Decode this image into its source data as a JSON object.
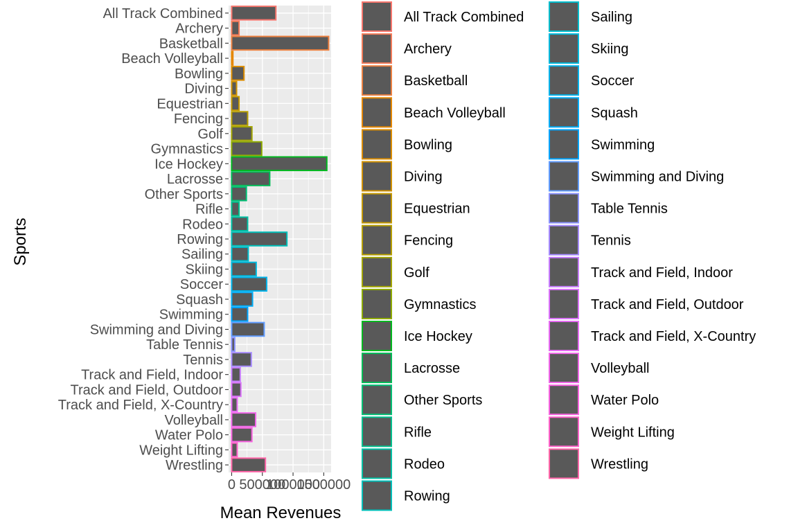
{
  "chart_data": {
    "type": "bar",
    "orientation": "horizontal",
    "xlabel": "Mean Revenues",
    "ylabel": "Sports",
    "x_ticks": [
      0,
      500000,
      1000000,
      1500000
    ],
    "x_tick_labels": [
      "0",
      "500000",
      "1000000",
      "1500000"
    ],
    "xlim": [
      -50000,
      1620000
    ],
    "grid": true,
    "legend_position": "right",
    "legend_columns": 2,
    "bar_fill": "#595959",
    "panel_background": "#ebebeb",
    "categories": [
      "All Track Combined",
      "Archery",
      "Basketball",
      "Beach Volleyball",
      "Bowling",
      "Diving",
      "Equestrian",
      "Fencing",
      "Golf",
      "Gymnastics",
      "Ice Hockey",
      "Lacrosse",
      "Other Sports",
      "Rifle",
      "Rodeo",
      "Rowing",
      "Sailing",
      "Skiing",
      "Soccer",
      "Squash",
      "Swimming",
      "Swimming and Diving",
      "Table Tennis",
      "Tennis",
      "Track and Field, Indoor",
      "Track and Field, Outdoor",
      "Track and Field, X-Country",
      "Volleyball",
      "Water Polo",
      "Weight Lifting",
      "Wrestling"
    ],
    "values": [
      720000,
      120000,
      1580000,
      20000,
      200000,
      80000,
      120000,
      260000,
      330000,
      490000,
      1550000,
      620000,
      240000,
      120000,
      260000,
      900000,
      270000,
      400000,
      570000,
      340000,
      260000,
      530000,
      50000,
      320000,
      140000,
      150000,
      90000,
      390000,
      330000,
      90000,
      550000
    ],
    "series_colors": [
      "#F8766D",
      "#F37B59",
      "#ED8141",
      "#E58700",
      "#DC8D00",
      "#D29200",
      "#C59900",
      "#B79F00",
      "#A3A500",
      "#8EAB00",
      "#00B81F",
      "#00BC56",
      "#00BF74",
      "#00C08E",
      "#00C1A5",
      "#00C0BA",
      "#00BDCD",
      "#00BADE",
      "#00B4EC",
      "#00ADF8",
      "#00A5FF",
      "#619CFF",
      "#8B93FF",
      "#A58AFF",
      "#C77CFF",
      "#DB72FB",
      "#E76BF3",
      "#F066E9",
      "#F763E0",
      "#FF61C9",
      "#FF66A8"
    ]
  }
}
